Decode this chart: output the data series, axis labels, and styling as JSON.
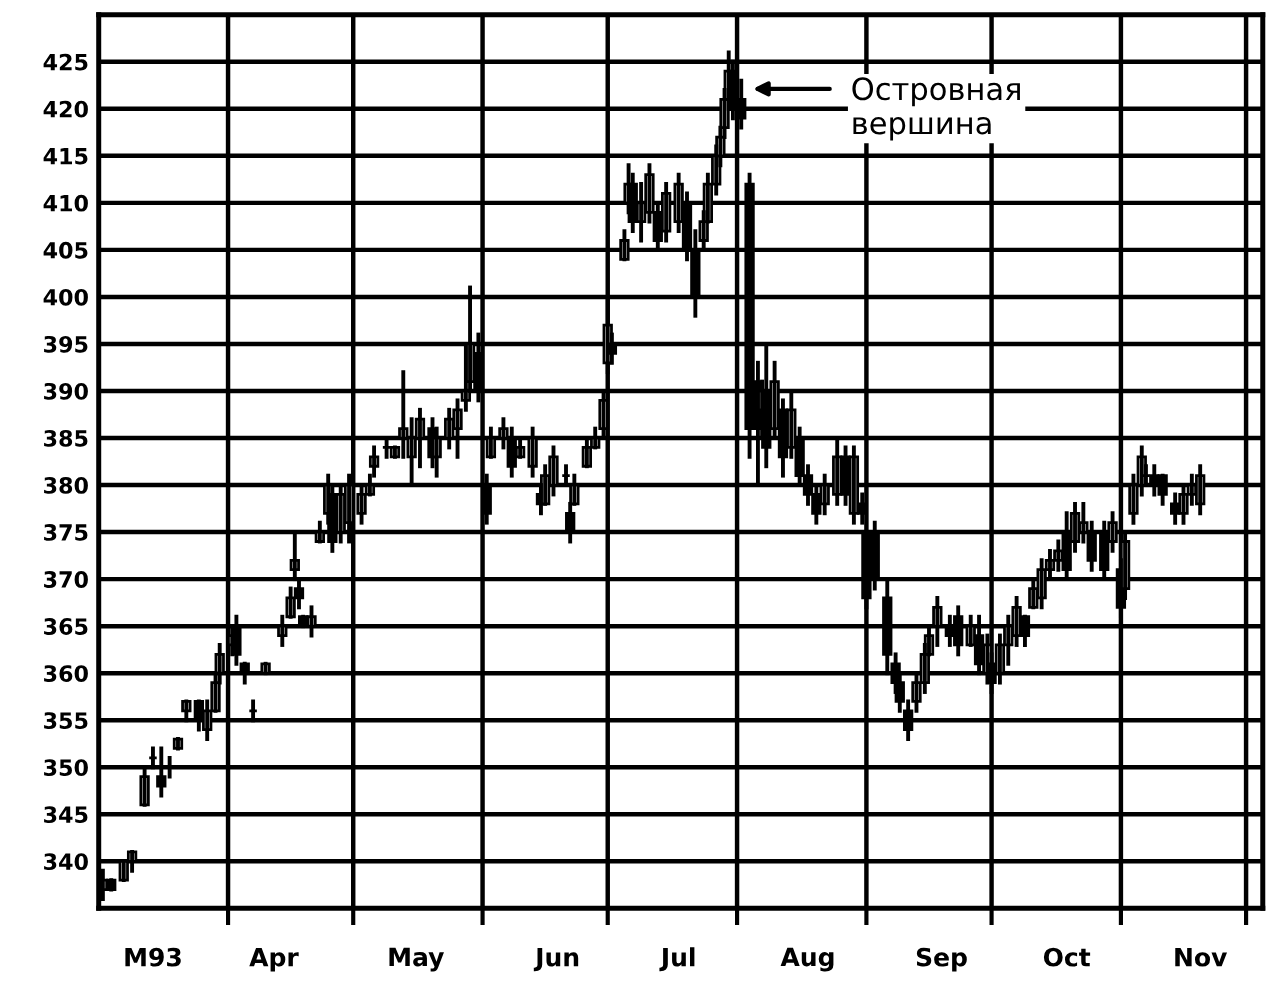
{
  "chart_data": {
    "type": "candlestick",
    "x": [
      "1993-03-02",
      "1993-03-04",
      "1993-03-07",
      "1993-03-09",
      "1993-03-12",
      "1993-03-14",
      "1993-03-16",
      "1993-03-18",
      "1993-03-20",
      "1993-03-22",
      "1993-03-25",
      "1993-03-27",
      "1993-03-29",
      "1993-03-30",
      "1993-04-02",
      "1993-04-03",
      "1993-04-05",
      "1993-04-07",
      "1993-04-10",
      "1993-04-14",
      "1993-04-16",
      "1993-04-17",
      "1993-04-18",
      "1993-04-19",
      "1993-04-21",
      "1993-04-23",
      "1993-04-25",
      "1993-04-26",
      "1993-04-28",
      "1993-04-30",
      "1993-05-03",
      "1993-05-05",
      "1993-05-06",
      "1993-05-09",
      "1993-05-11",
      "1993-05-13",
      "1993-05-15",
      "1993-05-17",
      "1993-05-20",
      "1993-05-21",
      "1993-05-24",
      "1993-05-26",
      "1993-05-28",
      "1993-05-29",
      "1993-05-31",
      "1993-06-02",
      "1993-06-03",
      "1993-06-06",
      "1993-06-08",
      "1993-06-10",
      "1993-06-13",
      "1993-06-15",
      "1993-06-16",
      "1993-06-18",
      "1993-06-21",
      "1993-06-22",
      "1993-06-23",
      "1993-06-26",
      "1993-06-28",
      "1993-06-30",
      "1993-07-01",
      "1993-07-02",
      "1993-07-05",
      "1993-07-06",
      "1993-07-07",
      "1993-07-09",
      "1993-07-11",
      "1993-07-13",
      "1993-07-15",
      "1993-07-18",
      "1993-07-20",
      "1993-07-22",
      "1993-07-24",
      "1993-07-25",
      "1993-07-27",
      "1993-07-28",
      "1993-07-29",
      "1993-07-30",
      "1993-07-31",
      "1993-08-02",
      "1993-08-04",
      "1993-08-06",
      "1993-08-07",
      "1993-08-08",
      "1993-08-10",
      "1993-08-12",
      "1993-08-14",
      "1993-08-16",
      "1993-08-18",
      "1993-08-20",
      "1993-08-22",
      "1993-08-25",
      "1993-08-27",
      "1993-08-29",
      "1993-08-31",
      "1993-09-01",
      "1993-09-03",
      "1993-09-06",
      "1993-09-08",
      "1993-09-09",
      "1993-09-11",
      "1993-09-13",
      "1993-09-15",
      "1993-09-16",
      "1993-09-18",
      "1993-09-21",
      "1993-09-23",
      "1993-09-26",
      "1993-09-28",
      "1993-09-30",
      "1993-10-01",
      "1993-10-03",
      "1993-10-05",
      "1993-10-07",
      "1993-10-09",
      "1993-10-11",
      "1993-10-13",
      "1993-10-15",
      "1993-10-17",
      "1993-10-19",
      "1993-10-21",
      "1993-10-23",
      "1993-10-25",
      "1993-10-28",
      "1993-10-30",
      "1993-11-01",
      "1993-11-02",
      "1993-11-04",
      "1993-11-06",
      "1993-11-07",
      "1993-11-09",
      "1993-11-11",
      "1993-11-14",
      "1993-11-16",
      "1993-11-18",
      "1993-11-20"
    ],
    "ohlc": [
      [
        337,
        339,
        336,
        338
      ],
      [
        338,
        338,
        337,
        337
      ],
      [
        338,
        340,
        338,
        340
      ],
      [
        340,
        341,
        339,
        341
      ],
      [
        346,
        350,
        346,
        349
      ],
      [
        351,
        352,
        350,
        351
      ],
      [
        349,
        352,
        347,
        348
      ],
      [
        350,
        351,
        349,
        350
      ],
      [
        352,
        353,
        352,
        353
      ],
      [
        356,
        357,
        355,
        357
      ],
      [
        357,
        357,
        354,
        355
      ],
      [
        354,
        357,
        353,
        356
      ],
      [
        356,
        360,
        356,
        359
      ],
      [
        360,
        363,
        359,
        362
      ],
      [
        363,
        365,
        362,
        364
      ],
      [
        365,
        366,
        361,
        362
      ],
      [
        361,
        361,
        359,
        360
      ],
      [
        356,
        357,
        355,
        356
      ],
      [
        360,
        361,
        360,
        361
      ],
      [
        364,
        366,
        363,
        365
      ],
      [
        366,
        369,
        366,
        368
      ],
      [
        371,
        375,
        370,
        372
      ],
      [
        369,
        370,
        367,
        368
      ],
      [
        366,
        366,
        365,
        365
      ],
      [
        365,
        367,
        364,
        366
      ],
      [
        374,
        376,
        374,
        375
      ],
      [
        377,
        381,
        376,
        380
      ],
      [
        379,
        380,
        373,
        374
      ],
      [
        375,
        380,
        374,
        379
      ],
      [
        376,
        381,
        374,
        380
      ],
      [
        377,
        380,
        376,
        379
      ],
      [
        379,
        381,
        379,
        380
      ],
      [
        382,
        384,
        381,
        383
      ],
      [
        384,
        385,
        383,
        384
      ],
      [
        383,
        384,
        383,
        384
      ],
      [
        385,
        392,
        383,
        386
      ],
      [
        383,
        387,
        380,
        385
      ],
      [
        385,
        388,
        382,
        387
      ],
      [
        386,
        387,
        382,
        383
      ],
      [
        383,
        386,
        381,
        385
      ],
      [
        385,
        388,
        384,
        387
      ],
      [
        386,
        389,
        383,
        388
      ],
      [
        389,
        395,
        388,
        390
      ],
      [
        391,
        401,
        390,
        395
      ],
      [
        394,
        396,
        389,
        390
      ],
      [
        380,
        381,
        376,
        377
      ],
      [
        383,
        386,
        383,
        385
      ],
      [
        385,
        387,
        384,
        386
      ],
      [
        385,
        386,
        381,
        382
      ],
      [
        383,
        385,
        383,
        384
      ],
      [
        382,
        386,
        381,
        385
      ],
      [
        379,
        380,
        377,
        378
      ],
      [
        378,
        382,
        378,
        381
      ],
      [
        380,
        384,
        379,
        383
      ],
      [
        381,
        382,
        380,
        381
      ],
      [
        377,
        378,
        374,
        375
      ],
      [
        378,
        381,
        378,
        380
      ],
      [
        382,
        385,
        382,
        384
      ],
      [
        384,
        386,
        384,
        385
      ],
      [
        386,
        390,
        385,
        389
      ],
      [
        393,
        400,
        392,
        397
      ],
      [
        395,
        396,
        393,
        394
      ],
      [
        404,
        407,
        404,
        406
      ],
      [
        410,
        414,
        409,
        412
      ],
      [
        412,
        413,
        407,
        408
      ],
      [
        408,
        412,
        406,
        410
      ],
      [
        409,
        414,
        408,
        413
      ],
      [
        409,
        410,
        405,
        406
      ],
      [
        407,
        412,
        406,
        411
      ],
      [
        408,
        413,
        407,
        412
      ],
      [
        410,
        411,
        404,
        405
      ],
      [
        405,
        407,
        398,
        400
      ],
      [
        406,
        409,
        405,
        408
      ],
      [
        408,
        413,
        408,
        412
      ],
      [
        412,
        416,
        411,
        415
      ],
      [
        415,
        418,
        414,
        417
      ],
      [
        418,
        422,
        417,
        421
      ],
      [
        421,
        426,
        420,
        424
      ],
      [
        424,
        425,
        419,
        420
      ],
      [
        421,
        423,
        418,
        419
      ],
      [
        412,
        413,
        383,
        386
      ],
      [
        391,
        393,
        380,
        386
      ],
      [
        388,
        391,
        385,
        390
      ],
      [
        390,
        395,
        382,
        384
      ],
      [
        386,
        393,
        385,
        391
      ],
      [
        388,
        389,
        381,
        383
      ],
      [
        384,
        390,
        383,
        388
      ],
      [
        385,
        386,
        380,
        381
      ],
      [
        381,
        382,
        378,
        379
      ],
      [
        379,
        380,
        376,
        377
      ],
      [
        378,
        381,
        377,
        380
      ],
      [
        379,
        385,
        378,
        383
      ],
      [
        383,
        384,
        378,
        379
      ],
      [
        377,
        384,
        376,
        383
      ],
      [
        378,
        379,
        376,
        377
      ],
      [
        375,
        375,
        367,
        368
      ],
      [
        375,
        376,
        369,
        370
      ],
      [
        368,
        370,
        360,
        362
      ],
      [
        361,
        362,
        358,
        359
      ],
      [
        359,
        360,
        356,
        357
      ],
      [
        356,
        357,
        353,
        354
      ],
      [
        357,
        360,
        356,
        359
      ],
      [
        359,
        363,
        358,
        362
      ],
      [
        362,
        365,
        362,
        364
      ],
      [
        365,
        368,
        363,
        367
      ],
      [
        365,
        366,
        363,
        364
      ],
      [
        366,
        367,
        362,
        363
      ],
      [
        363,
        366,
        363,
        365
      ],
      [
        364,
        366,
        360,
        361
      ],
      [
        360,
        364,
        359,
        363
      ],
      [
        361,
        362,
        358,
        359
      ],
      [
        360,
        364,
        359,
        363
      ],
      [
        363,
        366,
        361,
        365
      ],
      [
        364,
        368,
        363,
        367
      ],
      [
        366,
        366,
        363,
        364
      ],
      [
        367,
        370,
        367,
        369
      ],
      [
        368,
        372,
        367,
        371
      ],
      [
        371,
        373,
        370,
        372
      ],
      [
        372,
        374,
        371,
        373
      ],
      [
        375,
        377,
        370,
        371
      ],
      [
        374,
        378,
        373,
        377
      ],
      [
        375,
        378,
        374,
        376
      ],
      [
        375,
        376,
        371,
        372
      ],
      [
        375,
        376,
        370,
        371
      ],
      [
        374,
        377,
        373,
        376
      ],
      [
        371,
        372,
        366,
        367
      ],
      [
        369,
        375,
        368,
        374
      ],
      [
        377,
        381,
        376,
        380
      ],
      [
        380,
        384,
        379,
        383
      ],
      [
        381,
        382,
        380,
        381
      ],
      [
        381,
        382,
        379,
        380
      ],
      [
        381,
        381,
        378,
        379
      ],
      [
        378,
        379,
        376,
        377
      ],
      [
        377,
        380,
        376,
        379
      ],
      [
        379,
        381,
        378,
        380
      ],
      [
        378,
        382,
        377,
        381
      ]
    ],
    "xlim": [
      "1993-03-01",
      "1993-12-05"
    ],
    "ylim": [
      335,
      430
    ],
    "xticks": [
      {
        "value": "1993-04-01",
        "label": null
      },
      {
        "value": "1993-05-01",
        "label": null
      },
      {
        "value": "1993-06-01",
        "label": null
      },
      {
        "value": "1993-07-01",
        "label": null
      },
      {
        "value": "1993-08-01",
        "label": null
      },
      {
        "value": "1993-09-01",
        "label": null
      },
      {
        "value": "1993-10-01",
        "label": null
      },
      {
        "value": "1993-11-01",
        "label": null
      },
      {
        "value": "1993-12-01",
        "label": null
      },
      {
        "value": "1993-03-14",
        "label": "M93"
      },
      {
        "value": "1993-04-12",
        "label": "Apr"
      },
      {
        "value": "1993-05-16",
        "label": "May"
      },
      {
        "value": "1993-06-19",
        "label": "Jun"
      },
      {
        "value": "1993-07-18",
        "label": "Jul"
      },
      {
        "value": "1993-08-18",
        "label": "Aug"
      },
      {
        "value": "1993-09-19",
        "label": "Sep"
      },
      {
        "value": "1993-10-19",
        "label": "Oct"
      },
      {
        "value": "1993-11-20",
        "label": "Nov"
      }
    ],
    "yticks": [
      340,
      345,
      350,
      355,
      360,
      365,
      370,
      375,
      380,
      385,
      390,
      395,
      400,
      405,
      410,
      415,
      420,
      425
    ],
    "color": "#000000",
    "grid": true,
    "annotations": [
      "Островная\nвершина"
    ]
  }
}
